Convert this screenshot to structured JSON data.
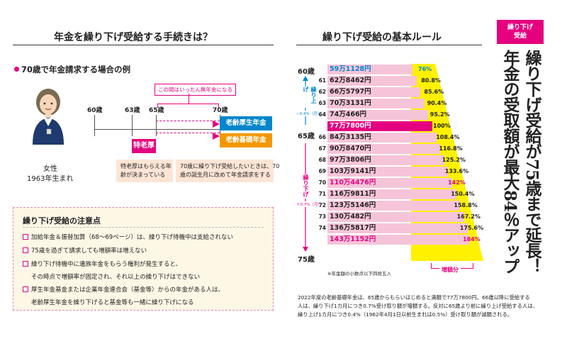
{
  "left_heading": "年金を繰り下げ受給する手続きは？",
  "subheading": "70歳で年金請求する場合の例",
  "person": {
    "label": "女性",
    "birth": "1963年生まれ"
  },
  "timeline": {
    "ages": [
      "60歳",
      "63歳",
      "65歳",
      "70歳"
    ],
    "notice": "この間はいったん無年金になる",
    "tokurou": "特老厚",
    "rouseki": "老齢厚生年金",
    "rokiso": "老齢基礎年金",
    "note1": [
      "特老厚はもらえる年",
      "齢が決まっている"
    ],
    "note2": [
      "70歳に繰り下げ受給したいときは、70",
      "歳の誕生月に改めて年金請求をする"
    ]
  },
  "caution": {
    "title": "繰り下げ受給の注意点",
    "items": [
      "加給年金＆振替加算（68〜69ページ）は、繰り下げ待機中は支給されない",
      "75歳を過ぎて請求しても増額率は増えない",
      "繰り下げ待機中に遺族年金をもらう権利が発生すると、",
      "その時点で増額率が固定され、それ以上の繰り下げはできない",
      "厚生年金基金または企業年金連合会（基金等）からの年金がある人は、",
      "老齢厚生年金を繰り下げると基金等も一緒に繰り下げになる"
    ]
  },
  "right_heading": "繰り下げ受給の基本ルール",
  "age_top": "60歳",
  "age_mid": "65歳",
  "age_bottom": "75歳",
  "kuriage": "繰り上げ",
  "kuriage_rate": "−0.4%（月）",
  "kurisage": "繰り下げ",
  "kurisage_rate": "＋0.7%（月）",
  "rows": [
    {
      "age": "",
      "amount": "59万1128円",
      "pct": "76%"
    },
    {
      "age": "61",
      "amount": "62万8462円",
      "pct": "80.8%"
    },
    {
      "age": "62",
      "amount": "66万5797円",
      "pct": "85.6%"
    },
    {
      "age": "63",
      "amount": "70万3131円",
      "pct": "90.4%"
    },
    {
      "age": "64",
      "amount": "74万466円",
      "pct": "95.2%"
    },
    {
      "age": "",
      "amount": "77万7800円",
      "pct": "100%"
    },
    {
      "age": "66",
      "amount": "84万3135円",
      "pct": "108.4%"
    },
    {
      "age": "67",
      "amount": "90万8470円",
      "pct": "116.8%"
    },
    {
      "age": "68",
      "amount": "97万3806円",
      "pct": "125.2%"
    },
    {
      "age": "69",
      "amount": "103万9141円",
      "pct": "133.6%"
    },
    {
      "age": "70",
      "amount": "110万4476円",
      "pct": "142%"
    },
    {
      "age": "71",
      "amount": "116万9811円",
      "pct": "150.4%"
    },
    {
      "age": "72",
      "amount": "123万5146円",
      "pct": "158.8%"
    },
    {
      "age": "73",
      "amount": "130万482円",
      "pct": "167.2%"
    },
    {
      "age": "74",
      "amount": "136万5817円",
      "pct": "175.6%"
    },
    {
      "age": "",
      "amount": "143万1152円",
      "pct": "184%"
    }
  ],
  "footnote_round": "※年金額の小数点以下四捨五入",
  "zougaku": "増額分",
  "badge": "繰り下げ受給",
  "big_title_1": "繰り下げ受給が75歳まで延長！",
  "big_title_2": "年金の受取額が最大84％アップ",
  "bottom_note": [
    "2022年度の老齢基礎年金は、65歳からもらいはじめると満額で77万7800円。66歳以降に受給する",
    "人は、繰り下げ1カ月につき0.7%受け取り額が増額する。反対に65歳より前に繰り上げ受給する人は、",
    "繰り上げ1カ月につき0.4%（1962年4月1日以前生まれは0.5%）受け取り額が減額される。"
  ],
  "colors": {
    "pink": "#e5007f",
    "light_pink": "#f6c4d9",
    "yellow": "#fff100",
    "orange": "#f39800",
    "blue": "#0086cc"
  }
}
